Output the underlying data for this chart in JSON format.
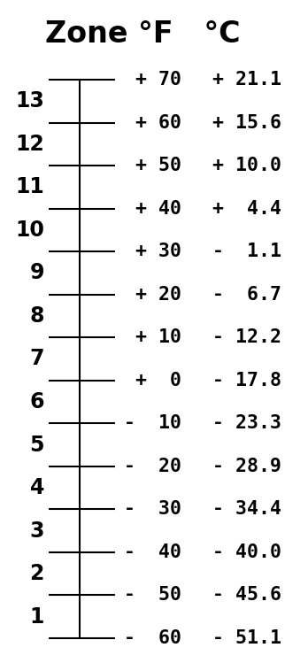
{
  "title_parts": [
    "Zone ",
    "°F  ",
    "°C"
  ],
  "zones": [
    13,
    12,
    11,
    10,
    9,
    8,
    7,
    6,
    5,
    4,
    3,
    2,
    1
  ],
  "f_labels": [
    "+ 70",
    "+ 60",
    "+ 50",
    "+ 40",
    "+ 30",
    "+ 20",
    "+ 10",
    "+  0",
    "-  10",
    "-  20",
    "-  30",
    "-  40",
    "-  50",
    "-  60"
  ],
  "c_labels": [
    "+ 21.1",
    "+ 15.6",
    "+ 10.0",
    "+  4.4",
    "-  1.1",
    "-  6.7",
    "- 12.2",
    "- 17.8",
    "- 23.3",
    "- 28.9",
    "- 34.4",
    "- 40.0",
    "- 45.6",
    "- 51.1"
  ],
  "n_ticks": 14,
  "background_color": "#ffffff",
  "text_color": "#000000",
  "title_fontsize": 24,
  "label_fontsize": 15.5,
  "zone_fontsize": 17
}
